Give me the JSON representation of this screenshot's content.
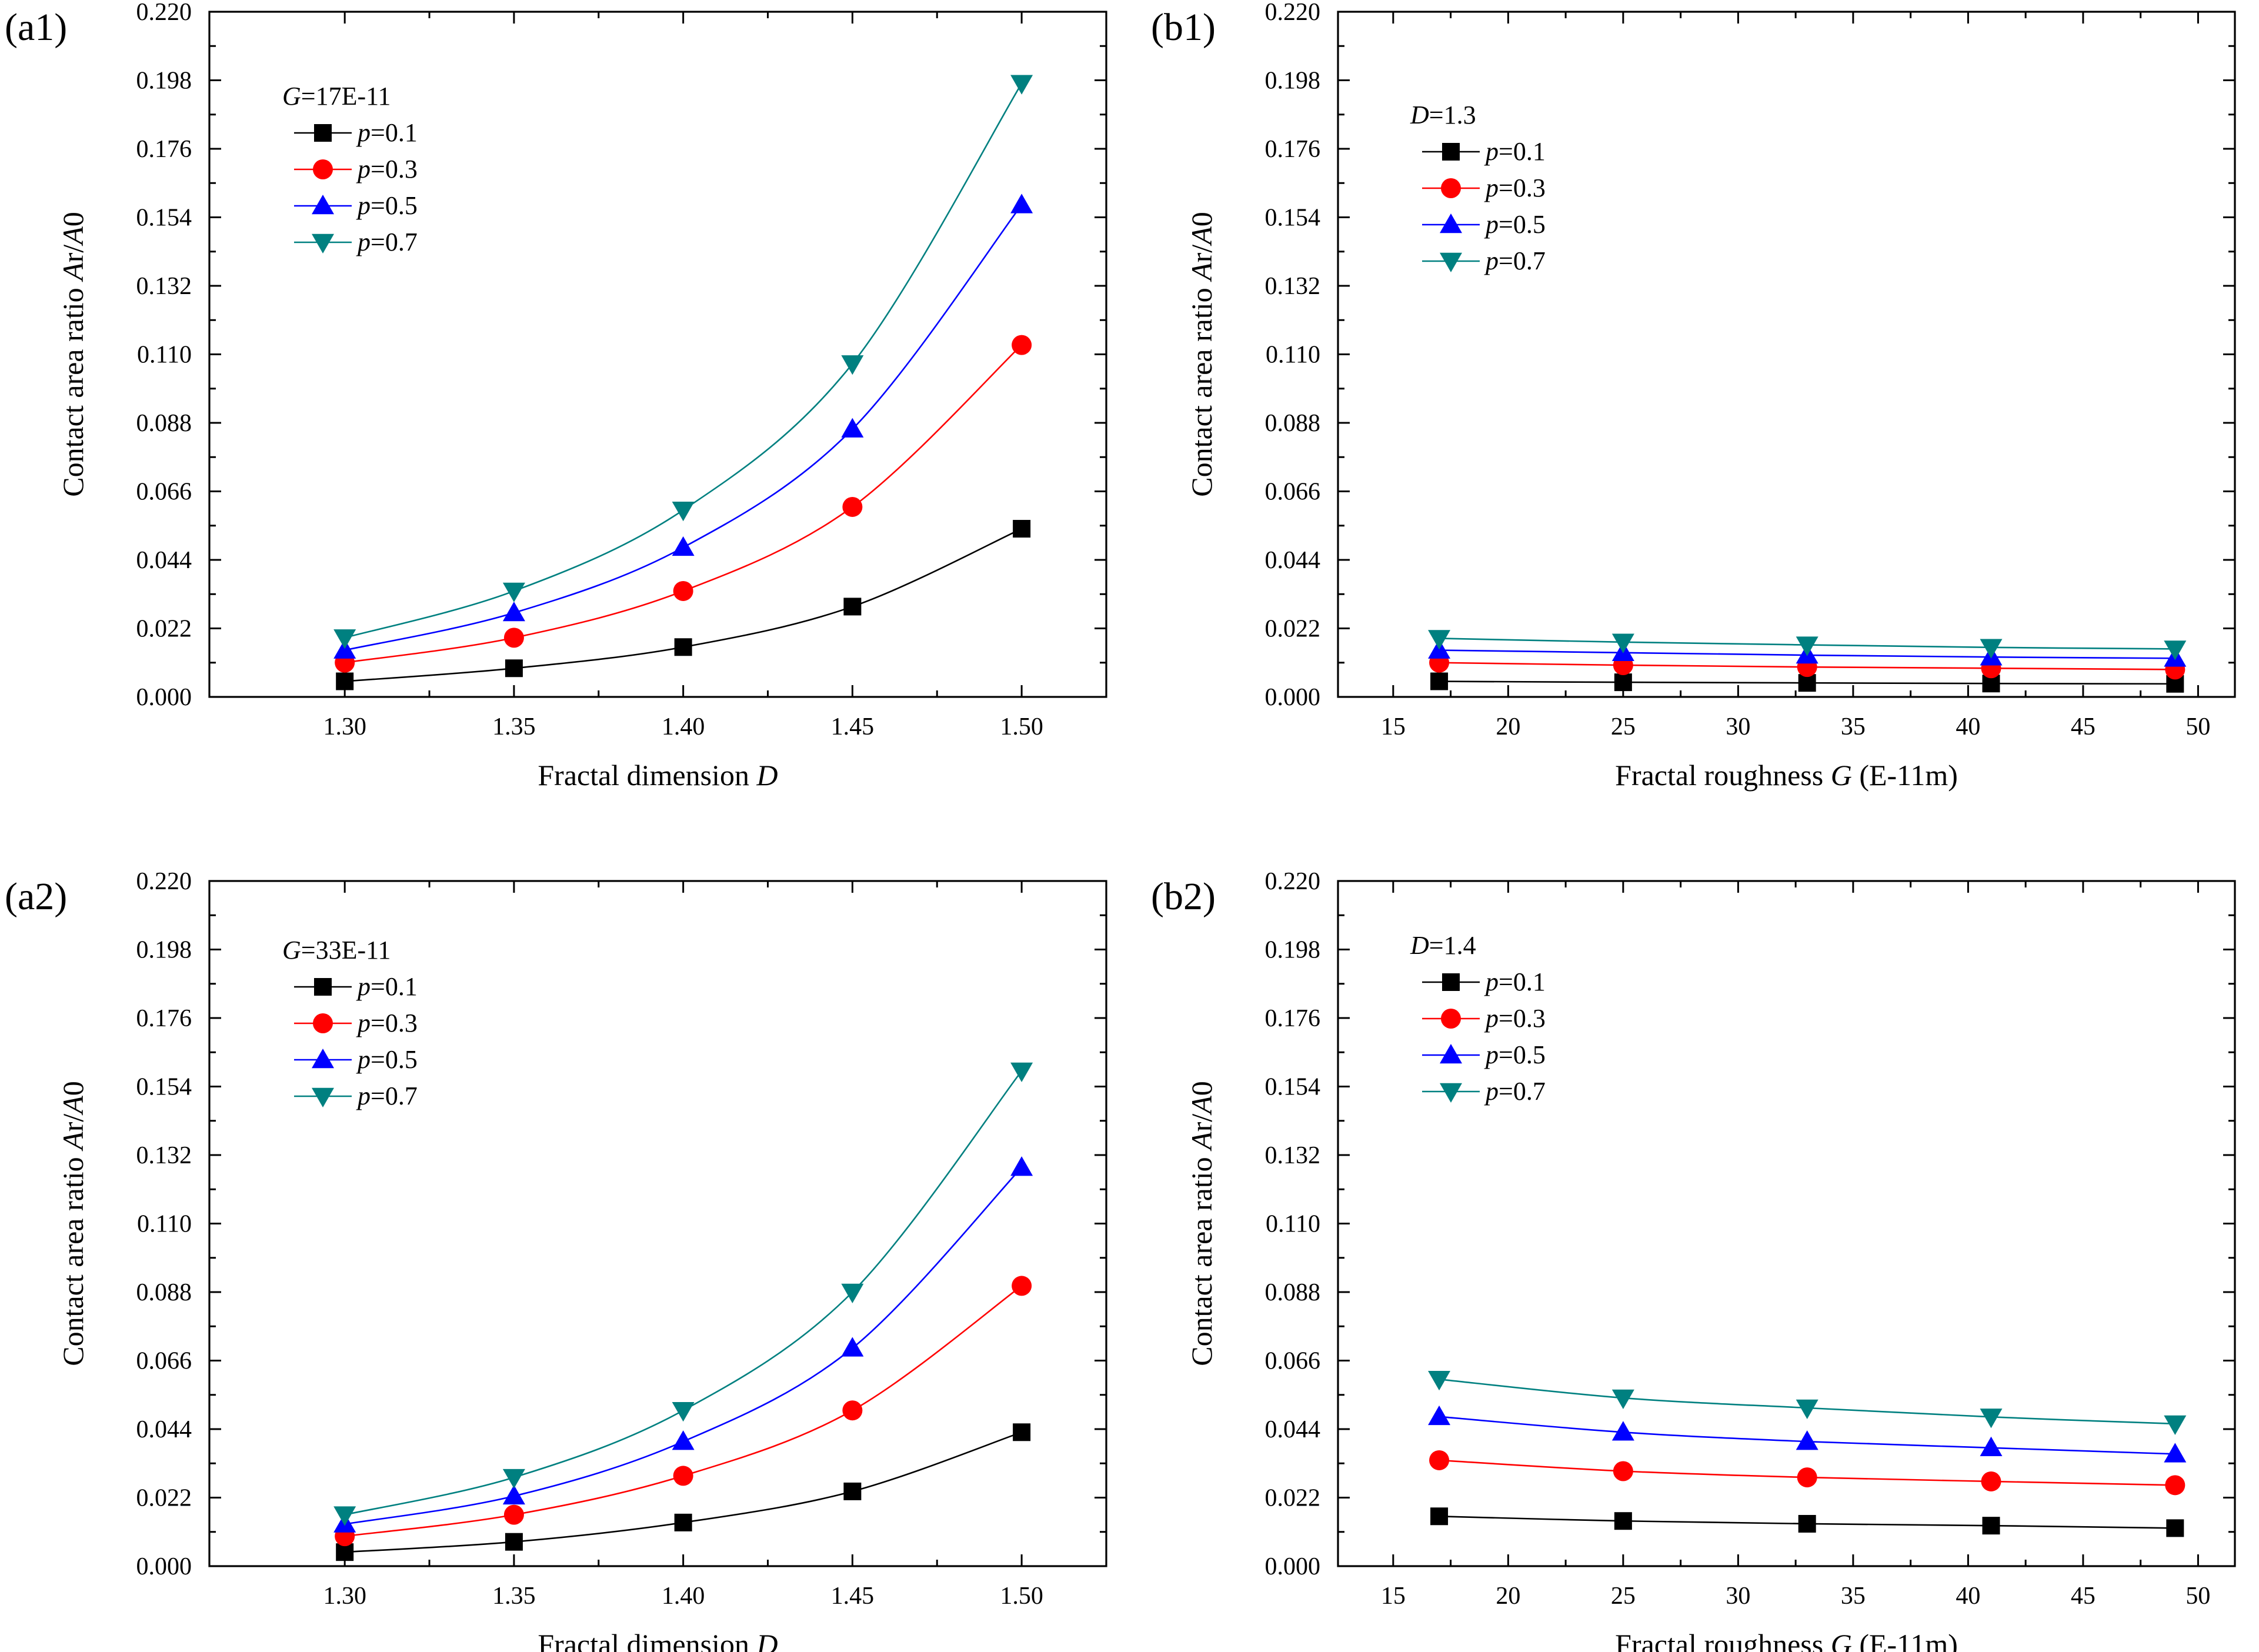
{
  "figure": {
    "xlabel_prefix_a": "Fractal dimension ",
    "xlabel_var_a": "D",
    "xlabel_prefix_b": "Fractal roughness ",
    "xlabel_var_b": "G",
    "xlabel_suffix_b": " (E-11m)",
    "ylabel_prefix": "Contact area ratio ",
    "ylabel_ar": "A",
    "ylabel_ar_sub": "r",
    "ylabel_slash": "/",
    "ylabel_a0": "A",
    "ylabel_a0_sub": "0",
    "legend_var": "p",
    "colors": {
      "p01": "#000000",
      "p03": "#ff0000",
      "p05": "#0000ff",
      "p07": "#008080"
    }
  },
  "chart_data": [
    {
      "panel": "(a1)",
      "type": "line",
      "x_kind": "D",
      "legend_title_var": "G",
      "legend_title_rest": "=17E-11",
      "x": [
        "1.30",
        "1.35",
        "1.40",
        "1.45",
        "1.50"
      ],
      "xlim": [
        1.26,
        1.525
      ],
      "ylim": [
        0.0,
        0.22
      ],
      "yticks": [
        "0.000",
        "0.022",
        "0.044",
        "0.066",
        "0.088",
        "0.110",
        "0.132",
        "0.154",
        "0.176",
        "0.198",
        "0.220"
      ],
      "series": [
        {
          "name": "p=0.1",
          "value": "=0.1",
          "marker": "square",
          "values": [
            0.005,
            0.0092,
            0.016,
            0.029,
            0.054
          ]
        },
        {
          "name": "p=0.3",
          "value": "=0.3",
          "marker": "circle",
          "values": [
            0.011,
            0.019,
            0.034,
            0.061,
            0.113
          ]
        },
        {
          "name": "p=0.5",
          "value": "=0.5",
          "marker": "triangle-up",
          "values": [
            0.015,
            0.027,
            0.048,
            0.086,
            0.158
          ]
        },
        {
          "name": "p=0.7",
          "value": "=0.7",
          "marker": "triangle-down",
          "values": [
            0.019,
            0.034,
            0.06,
            0.107,
            0.197
          ]
        }
      ]
    },
    {
      "panel": "(b1)",
      "type": "line",
      "x_kind": "G",
      "legend_title_var": "D",
      "legend_title_rest": "=1.3",
      "x": [
        "17",
        "25",
        "33",
        "41",
        "49"
      ],
      "xticks": [
        "15",
        "20",
        "25",
        "30",
        "35",
        "40",
        "45",
        "50"
      ],
      "xlim": [
        12.6,
        51.6
      ],
      "ylim": [
        0.0,
        0.22
      ],
      "yticks": [
        "0.000",
        "0.022",
        "0.044",
        "0.066",
        "0.088",
        "0.110",
        "0.132",
        "0.154",
        "0.176",
        "0.198",
        "0.220"
      ],
      "series": [
        {
          "name": "p=0.1",
          "value": "=0.1",
          "marker": "square",
          "values": [
            0.005,
            0.0047,
            0.0045,
            0.0043,
            0.0042
          ]
        },
        {
          "name": "p=0.3",
          "value": "=0.3",
          "marker": "circle",
          "values": [
            0.011,
            0.0102,
            0.0096,
            0.0092,
            0.0088
          ]
        },
        {
          "name": "p=0.5",
          "value": "=0.5",
          "marker": "triangle-up",
          "values": [
            0.015,
            0.0142,
            0.0134,
            0.0128,
            0.0124
          ]
        },
        {
          "name": "p=0.7",
          "value": "=0.7",
          "marker": "triangle-down",
          "values": [
            0.0188,
            0.0176,
            0.0167,
            0.0159,
            0.0154
          ]
        }
      ]
    },
    {
      "panel": "(a2)",
      "type": "line",
      "x_kind": "D",
      "legend_title_var": "G",
      "legend_title_rest": "=33E-11",
      "x": [
        "1.30",
        "1.35",
        "1.40",
        "1.45",
        "1.50"
      ],
      "xlim": [
        1.26,
        1.525
      ],
      "ylim": [
        0.0,
        0.22
      ],
      "yticks": [
        "0.000",
        "0.022",
        "0.044",
        "0.066",
        "0.088",
        "0.110",
        "0.132",
        "0.154",
        "0.176",
        "0.198",
        "0.220"
      ],
      "series": [
        {
          "name": "p=0.1",
          "value": "=0.1",
          "marker": "square",
          "values": [
            0.0045,
            0.0078,
            0.014,
            0.024,
            0.043
          ]
        },
        {
          "name": "p=0.3",
          "value": "=0.3",
          "marker": "circle",
          "values": [
            0.0096,
            0.0165,
            0.029,
            0.05,
            0.09
          ]
        },
        {
          "name": "p=0.5",
          "value": "=0.5",
          "marker": "triangle-up",
          "values": [
            0.0135,
            0.0225,
            0.04,
            0.07,
            0.128
          ]
        },
        {
          "name": "p=0.7",
          "value": "=0.7",
          "marker": "triangle-down",
          "values": [
            0.0165,
            0.0285,
            0.05,
            0.088,
            0.159
          ]
        }
      ]
    },
    {
      "panel": "(b2)",
      "type": "line",
      "x_kind": "G",
      "legend_title_var": "D",
      "legend_title_rest": "=1.4",
      "x": [
        "17",
        "25",
        "33",
        "41",
        "49"
      ],
      "xticks": [
        "15",
        "20",
        "25",
        "30",
        "35",
        "40",
        "45",
        "50"
      ],
      "xlim": [
        12.6,
        51.6
      ],
      "ylim": [
        0.0,
        0.22
      ],
      "yticks": [
        "0.000",
        "0.022",
        "0.044",
        "0.066",
        "0.088",
        "0.110",
        "0.132",
        "0.154",
        "0.176",
        "0.198",
        "0.220"
      ],
      "series": [
        {
          "name": "p=0.1",
          "value": "=0.1",
          "marker": "square",
          "values": [
            0.016,
            0.0145,
            0.0136,
            0.013,
            0.0122
          ]
        },
        {
          "name": "p=0.3",
          "value": "=0.3",
          "marker": "circle",
          "values": [
            0.034,
            0.0305,
            0.0285,
            0.0272,
            0.026
          ]
        },
        {
          "name": "p=0.5",
          "value": "=0.5",
          "marker": "triangle-up",
          "values": [
            0.048,
            0.043,
            0.04,
            0.038,
            0.036
          ]
        },
        {
          "name": "p=0.7",
          "value": "=0.7",
          "marker": "triangle-down",
          "values": [
            0.06,
            0.054,
            0.0508,
            0.0479,
            0.0457
          ]
        }
      ]
    }
  ]
}
